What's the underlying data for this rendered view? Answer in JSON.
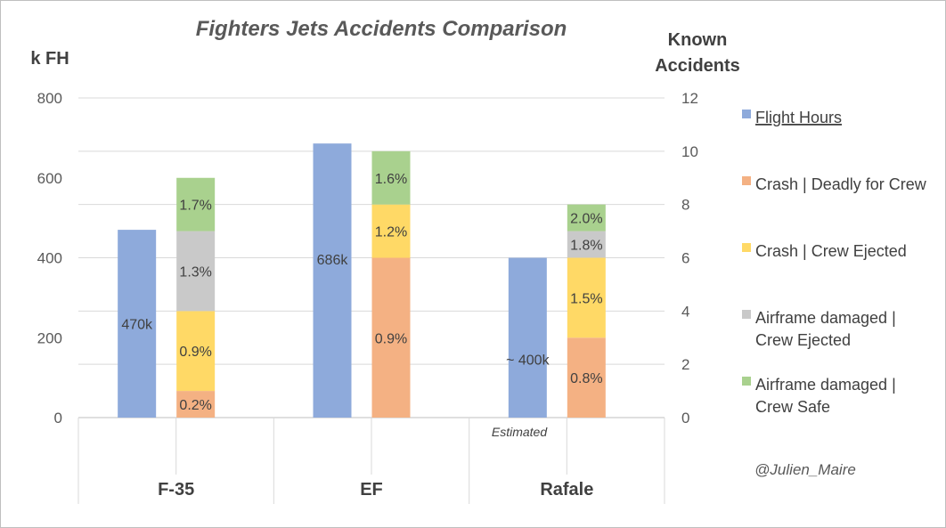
{
  "chart_data": {
    "type": "bar",
    "title": "Fighters Jets Accidents Comparison",
    "y_left": {
      "label": "k FH",
      "range": [
        0,
        800
      ],
      "ticks": [
        "0",
        "200",
        "400",
        "600",
        "800"
      ]
    },
    "y_right": {
      "label_lines": [
        "Known",
        "Accidents"
      ],
      "range": [
        0,
        12
      ],
      "ticks": [
        "0",
        "2",
        "4",
        "6",
        "8",
        "10",
        "12"
      ]
    },
    "categories": [
      "F-35",
      "EF",
      "Rafale"
    ],
    "flight_hours": {
      "name": "Flight Hours",
      "color": "#8eaadb",
      "values": [
        470,
        686,
        400
      ],
      "labels": [
        "470k",
        "686k",
        "~ 400k"
      ]
    },
    "accident_series": [
      {
        "name": "Crash | Deadly for Crew",
        "color": "#f4b183",
        "values": [
          1,
          6,
          3
        ],
        "labels": [
          "0.2%",
          "0.9%",
          "0.8%"
        ]
      },
      {
        "name": "Crash | Crew Ejected",
        "color": "#ffd966",
        "values": [
          3,
          2,
          3
        ],
        "labels": [
          "0.9%",
          "1.2%",
          "1.5%"
        ]
      },
      {
        "name": "Airframe damaged | Crew Ejected",
        "color": "#c9c9c9",
        "values": [
          3,
          0,
          1
        ],
        "labels": [
          "1.3%",
          "",
          "1.8%"
        ]
      },
      {
        "name": "Airframe damaged | Crew Safe",
        "color": "#a9d18e",
        "values": [
          2,
          2,
          1
        ],
        "labels": [
          "1.7%",
          "1.6%",
          "2.0%"
        ]
      }
    ],
    "annotations": {
      "estimated": "Estimated"
    },
    "legend": {
      "position": "right",
      "items": [
        {
          "lines": [
            "Flight Hours"
          ],
          "color": "#8eaadb",
          "underline": true
        },
        {
          "lines": [
            "Crash | Deadly for Crew"
          ],
          "color": "#f4b183"
        },
        {
          "lines": [
            "Crash | Crew Ejected"
          ],
          "color": "#ffd966"
        },
        {
          "lines": [
            "Airframe damaged |",
            "Crew Ejected"
          ],
          "color": "#c9c9c9"
        },
        {
          "lines": [
            "Airframe damaged |",
            "Crew Safe"
          ],
          "color": "#a9d18e"
        }
      ]
    },
    "grid": true
  },
  "credit": "@Julien_Maire"
}
